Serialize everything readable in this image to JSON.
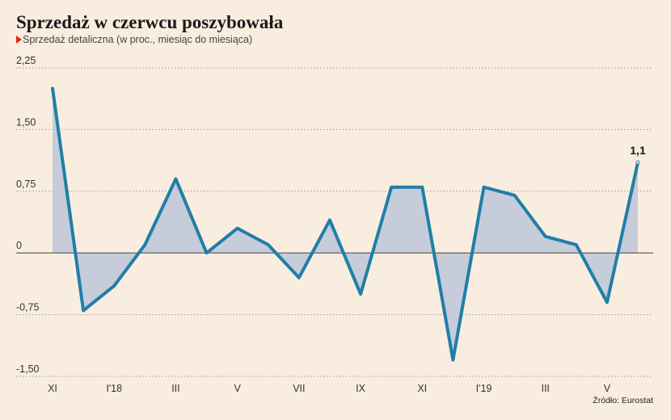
{
  "header": {
    "title": "Sprzedaż w czerwcu poszybowała",
    "subtitle": "Sprzedaż detaliczna (w proc., miesiąc do miesiąca)"
  },
  "footer": {
    "source": "Źródło: Eurostat"
  },
  "colors": {
    "line": "#1f7fa8",
    "area": "#c6ccd9",
    "accent_marker": "#e1261c",
    "background": "#f9ede0"
  },
  "chart_data": {
    "type": "area",
    "title": "Sprzedaż w czerwcu poszybowała",
    "subtitle": "Sprzedaż detaliczna (w proc., miesiąc do miesiąca)",
    "x": [
      "XI 2017",
      "XII 2017",
      "I 2018",
      "II 2018",
      "III 2018",
      "IV 2018",
      "V 2018",
      "VI 2018",
      "VII 2018",
      "VIII 2018",
      "IX 2018",
      "X 2018",
      "XI 2018",
      "XII 2018",
      "I 2019",
      "II 2019",
      "III 2019",
      "IV 2019",
      "V 2019",
      "VI 2019"
    ],
    "values": [
      2.0,
      -0.7,
      -0.4,
      0.1,
      0.9,
      0.0,
      0.3,
      0.1,
      -0.3,
      0.4,
      -0.5,
      0.8,
      0.8,
      -1.3,
      0.8,
      0.7,
      0.2,
      0.1,
      -0.6,
      1.1
    ],
    "x_tick_labels": [
      "XI",
      "I'18",
      "III",
      "V",
      "VII",
      "IX",
      "XI",
      "I'19",
      "III",
      "V"
    ],
    "x_tick_positions": [
      0,
      2,
      4,
      6,
      8,
      10,
      12,
      14,
      16,
      18
    ],
    "y_ticks": [
      2.25,
      1.5,
      0.75,
      0,
      -0.75,
      -1.5
    ],
    "y_tick_labels": [
      "2,25",
      "1,50",
      "0,75",
      "0",
      "-0,75",
      "-1,50"
    ],
    "ylim": [
      -1.5,
      2.25
    ],
    "grid": true,
    "annotation": {
      "index": 19,
      "label": "1,1"
    },
    "xlabel": "",
    "ylabel": ""
  }
}
